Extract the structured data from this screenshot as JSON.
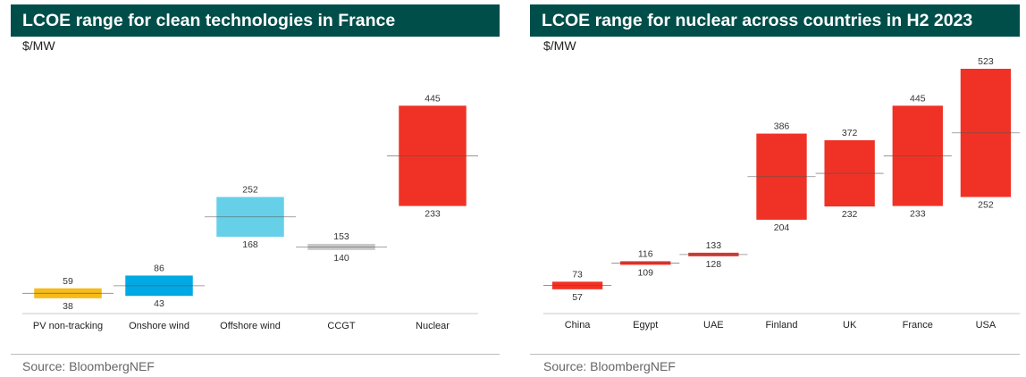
{
  "colors": {
    "title_bg": "#004e4a",
    "solar": "#f5bb19",
    "onshore": "#00a8e4",
    "offshore": "#66d0e8",
    "ccgt": "#c8c8c8",
    "nuclear": "#ef3225",
    "median_line": "#555555",
    "axis": "#c8c8c8"
  },
  "chart_data": [
    {
      "type": "bar",
      "subtype": "floating-range",
      "title": "LCOE range for clean technologies in France",
      "unit": "$/MW",
      "source": "Source: BloombergNEF",
      "ylim": [
        0,
        523
      ],
      "categories": [
        "PV non-tracking",
        "Onshore wind",
        "Offshore wind",
        "CCGT",
        "Nuclear"
      ],
      "low": [
        38,
        43,
        168,
        140,
        233
      ],
      "high": [
        59,
        86,
        252,
        153,
        445
      ],
      "colors": [
        "#f5bb19",
        "#00a8e4",
        "#66d0e8",
        "#c8c8c8",
        "#ef3225"
      ],
      "grid": false,
      "legend": "none"
    },
    {
      "type": "bar",
      "subtype": "floating-range",
      "title": "LCOE range for nuclear across countries in H2 2023",
      "unit": "$/MW",
      "source": "Source: BloombergNEF",
      "ylim": [
        0,
        523
      ],
      "categories": [
        "China",
        "Egypt",
        "UAE",
        "Finland",
        "UK",
        "France",
        "USA"
      ],
      "low": [
        57,
        109,
        128,
        204,
        232,
        233,
        252
      ],
      "high": [
        73,
        116,
        133,
        386,
        372,
        445,
        523
      ],
      "colors": [
        "#ef3225",
        "#ef3225",
        "#ef3225",
        "#ef3225",
        "#ef3225",
        "#ef3225",
        "#ef3225"
      ],
      "grid": false,
      "legend": "none"
    }
  ]
}
